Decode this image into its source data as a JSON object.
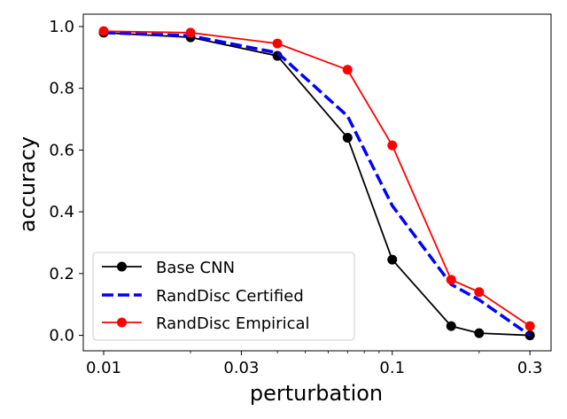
{
  "chart_data": {
    "type": "line",
    "xscale": "log",
    "xlabel": "perturbation",
    "ylabel": "accuracy",
    "xlim": [
      0.0085,
      0.355
    ],
    "ylim": [
      -0.05,
      1.04
    ],
    "xticks": [
      0.01,
      0.03,
      0.1,
      0.3
    ],
    "xtick_labels": [
      "0.01",
      "0.03",
      "0.1",
      "0.3"
    ],
    "yticks": [
      0.0,
      0.2,
      0.4,
      0.6,
      0.8,
      1.0
    ],
    "ytick_labels": [
      "0.0",
      "0.2",
      "0.4",
      "0.6",
      "0.8",
      "1.0"
    ],
    "grid": false,
    "legend_position": "lower-left",
    "x": [
      0.01,
      0.02,
      0.04,
      0.07,
      0.1,
      0.16,
      0.2,
      0.3
    ],
    "series": [
      {
        "name": "Base CNN",
        "color": "#000000",
        "style": "solid",
        "marker": "circle",
        "values": [
          0.98,
          0.965,
          0.905,
          0.64,
          0.245,
          0.03,
          0.007,
          0.0
        ]
      },
      {
        "name": "RandDisc Certified",
        "color": "#0000ff",
        "style": "dashed",
        "marker": "none",
        "values": [
          0.98,
          0.97,
          0.915,
          0.71,
          0.42,
          0.165,
          0.115,
          0.0
        ]
      },
      {
        "name": "RandDisc Empirical",
        "color": "#ff0000",
        "style": "solid",
        "marker": "circle",
        "values": [
          0.985,
          0.98,
          0.945,
          0.86,
          0.615,
          0.18,
          0.14,
          0.03
        ]
      }
    ]
  }
}
